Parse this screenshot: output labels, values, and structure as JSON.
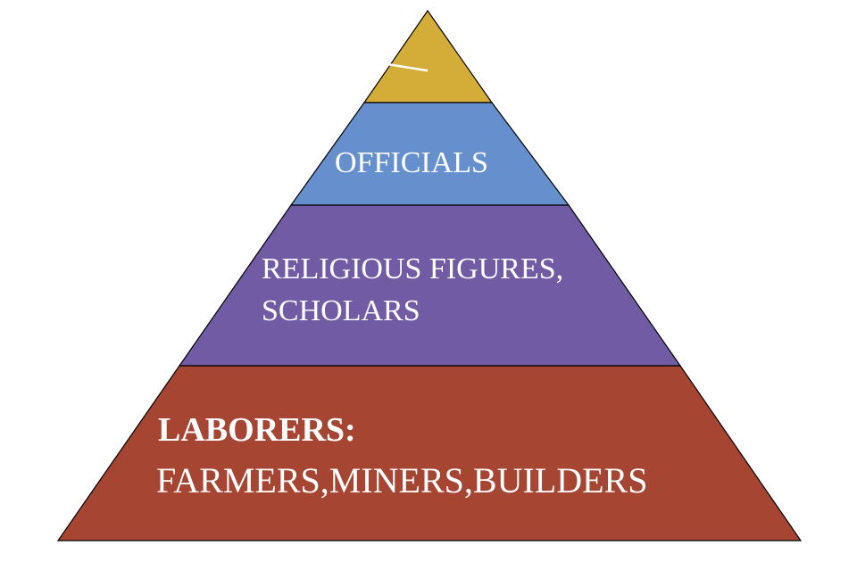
{
  "diagram": {
    "type": "pyramid",
    "tiers": [
      {
        "id": "top",
        "color": "#d4ac38",
        "mark": "slash"
      },
      {
        "id": "officials",
        "color": "#6690cd",
        "lines": [
          "OFFICIALS"
        ]
      },
      {
        "id": "religious",
        "color": "#715ba5",
        "lines": [
          "RELIGIOUS FIGURES,",
          "SCHOLARS"
        ]
      },
      {
        "id": "laborers",
        "color": "#a64532",
        "heading": "LABORERS:",
        "lines": [
          "FARMERS,MINERS,BUILDERS"
        ]
      }
    ]
  }
}
